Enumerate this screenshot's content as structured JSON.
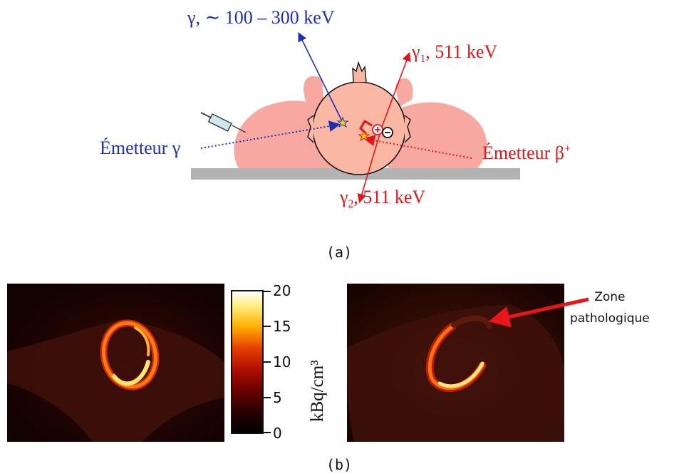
{
  "panel_a": {
    "gamma_emission_energy": "γ, ∼ 100 – 300 keV",
    "gamma1_label": "γ",
    "gamma1_sub": "1",
    "gamma1_energy": ", 511 keV",
    "gamma2_label": "γ",
    "gamma2_sub": "2",
    "gamma2_energy": ", 511 keV",
    "gamma_emitter_label": "Émetteur γ",
    "beta_emitter_label": "Émetteur β",
    "beta_emitter_sup": "+",
    "caption": "(a)",
    "colors": {
      "blue": "#1f2fb0",
      "red": "#e0161b",
      "body": "#f7a8a0",
      "head": "#f9b7a4",
      "table": "#b3b3b3"
    }
  },
  "panel_b": {
    "colorbar_ticks": [
      "20",
      "15",
      "10",
      "5",
      "0"
    ],
    "colorbar_range": [
      0,
      20
    ],
    "colorbar_unit": "kBq/cm³",
    "annotation_line1": "Zone",
    "annotation_line2": "pathologique",
    "caption": "(b)",
    "colormap": "hot"
  }
}
